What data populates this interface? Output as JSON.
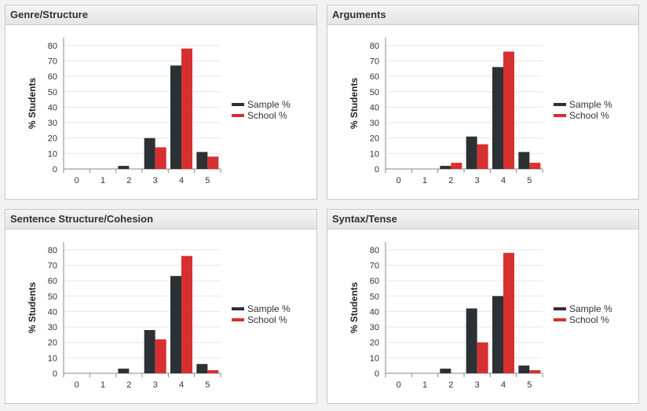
{
  "colors": {
    "sample": "#2b3134",
    "school": "#d63031",
    "grid": "#e6e6e6",
    "axis": "#888888"
  },
  "chart_data": [
    {
      "type": "bar",
      "title": "Genre/Structure",
      "categories": [
        "0",
        "1",
        "2",
        "3",
        "4",
        "5"
      ],
      "ylabel": "% Students",
      "ylim": [
        0,
        85
      ],
      "yticks": [
        0,
        10,
        20,
        30,
        40,
        50,
        60,
        70,
        80
      ],
      "grid": true,
      "legend": "right",
      "series": [
        {
          "name": "Sample %",
          "values": [
            0,
            0,
            2,
            20,
            67,
            11
          ]
        },
        {
          "name": "School %",
          "values": [
            0,
            0,
            0,
            14,
            78,
            8
          ]
        }
      ]
    },
    {
      "type": "bar",
      "title": "Arguments",
      "categories": [
        "0",
        "1",
        "2",
        "3",
        "4",
        "5"
      ],
      "ylabel": "% Students",
      "ylim": [
        0,
        85
      ],
      "yticks": [
        0,
        10,
        20,
        30,
        40,
        50,
        60,
        70,
        80
      ],
      "grid": true,
      "legend": "right",
      "series": [
        {
          "name": "Sample %",
          "values": [
            0,
            0,
            2,
            21,
            66,
            11
          ]
        },
        {
          "name": "School %",
          "values": [
            0,
            0,
            4,
            16,
            76,
            4
          ]
        }
      ]
    },
    {
      "type": "bar",
      "title": "Sentence Structure/Cohesion",
      "categories": [
        "0",
        "1",
        "2",
        "3",
        "4",
        "5"
      ],
      "ylabel": "% Students",
      "ylim": [
        0,
        85
      ],
      "yticks": [
        0,
        10,
        20,
        30,
        40,
        50,
        60,
        70,
        80
      ],
      "grid": true,
      "legend": "right",
      "series": [
        {
          "name": "Sample %",
          "values": [
            0,
            0,
            3,
            28,
            63,
            6
          ]
        },
        {
          "name": "School %",
          "values": [
            0,
            0,
            0,
            22,
            76,
            2
          ]
        }
      ]
    },
    {
      "type": "bar",
      "title": "Syntax/Tense",
      "categories": [
        "0",
        "1",
        "2",
        "3",
        "4",
        "5"
      ],
      "ylabel": "% Students",
      "ylim": [
        0,
        85
      ],
      "yticks": [
        0,
        10,
        20,
        30,
        40,
        50,
        60,
        70,
        80
      ],
      "grid": true,
      "legend": "right",
      "series": [
        {
          "name": "Sample %",
          "values": [
            0,
            0,
            3,
            42,
            50,
            5
          ]
        },
        {
          "name": "School %",
          "values": [
            0,
            0,
            0,
            20,
            78,
            2
          ]
        }
      ]
    }
  ]
}
